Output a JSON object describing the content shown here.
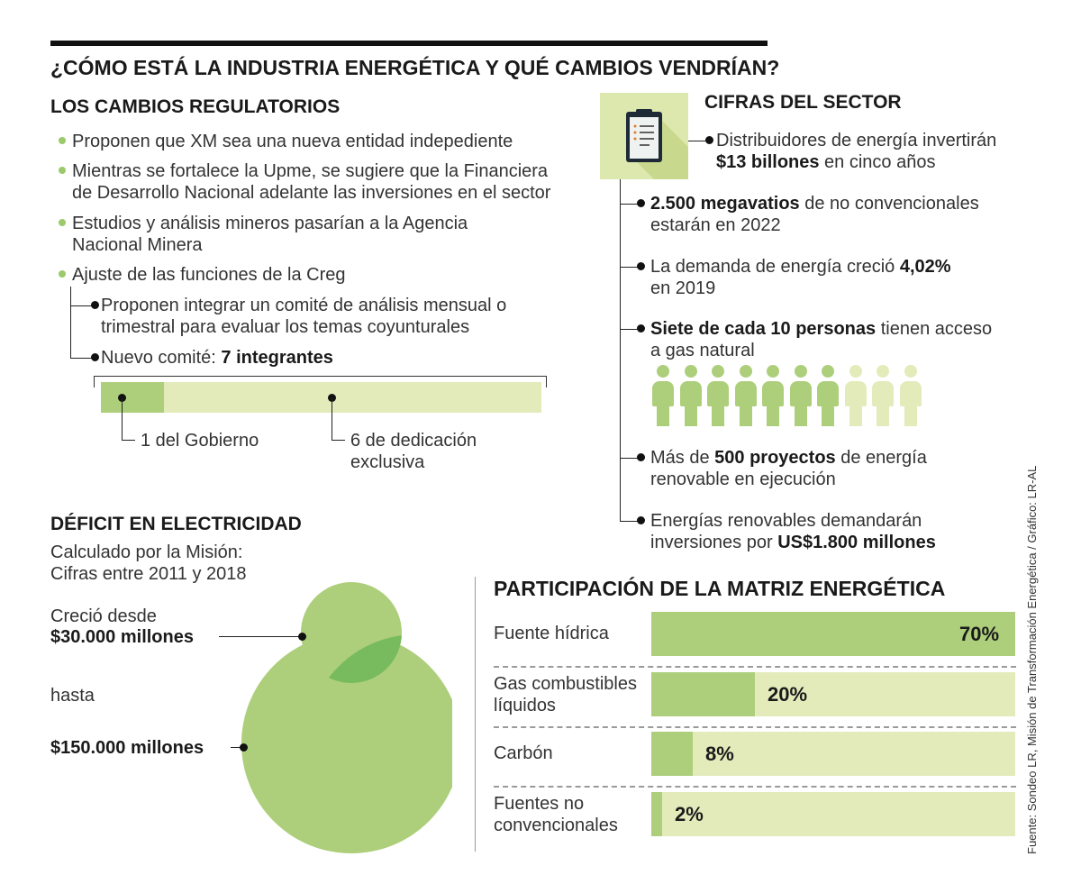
{
  "title": "¿CÓMO ESTÁ LA INDUSTRIA ENERGÉTICA Y QUÉ CAMBIOS VENDRÍAN?",
  "regulatory": {
    "heading": "LOS CAMBIOS REGULATORIOS",
    "items": [
      {
        "text": "Proponen que XM sea una nueva entidad indepediente"
      },
      {
        "line1": "Mientras se fortalece la Upme, se sugiere que la Financiera",
        "line2": "de Desarrollo Nacional adelante las inversiones en el sector"
      },
      {
        "line1": "Estudios y análisis mineros pasarían a la Agencia",
        "line2": "Nacional Minera"
      },
      {
        "text": "Ajuste de las funciones de la Creg"
      }
    ],
    "sub_items": [
      {
        "line1": "Proponen integrar un comité de análisis mensual o",
        "line2": "trimestral para evaluar los temas coyunturales"
      },
      {
        "prefix": "Nuevo comité: ",
        "bold": "7 integrantes"
      }
    ],
    "committee": {
      "government_share": 0.1428,
      "government_label": "1 del Gobierno",
      "exclusive_label_line1": "6 de dedicación",
      "exclusive_label_line2": "exclusiva"
    }
  },
  "sector": {
    "heading": "CIFRAS DEL SECTOR",
    "icon": "clipboard-icon",
    "items": [
      {
        "line1": "Distribuidores de energía invertirán",
        "line2_bold": "$13 billones",
        "line2_rest": " en cinco años"
      },
      {
        "line1_bold": "2.500 megavatios",
        "line1_rest": " de no convencionales",
        "line2": "estarán en 2022"
      },
      {
        "line1_pre": "La demanda de energía creció ",
        "line1_bold": "4,02%",
        "line2": "en 2019"
      },
      {
        "line1_bold": "Siete de cada 10 personas",
        "line1_rest": " tienen acceso",
        "line2": "a gas natural"
      },
      {
        "line1_pre": "Más de ",
        "line1_bold": "500 proyectos",
        "line1_rest": " de energía",
        "line2": "renovable en ejecución"
      },
      {
        "line1": "Energías renovables demandarán",
        "line2_pre": "inversiones por ",
        "line2_bold": "US$1.800 millones"
      }
    ],
    "people_with_access": 7,
    "people_total": 10
  },
  "deficit": {
    "heading": "DÉFICIT EN ELECTRICIDAD",
    "sub1": "Calculado por la Misión:",
    "sub2": "Cifras entre 2011 y 2018",
    "grew_from": "Creció desde",
    "from_value": "$30.000 millones",
    "until": "hasta",
    "to_value": "$150.000 millones"
  },
  "matrix": {
    "heading": "PARTICIPACIÓN DE LA MATRIZ ENERGÉTICA",
    "rows": [
      {
        "label1": "Fuente hídrica",
        "label2": "",
        "value": 70,
        "value_label": "70%"
      },
      {
        "label1": "Gas combustibles",
        "label2": "líquidos",
        "value": 20,
        "value_label": "20%"
      },
      {
        "label1": "Carbón",
        "label2": "",
        "value": 8,
        "value_label": "8%"
      },
      {
        "label1": "Fuentes no",
        "label2": "convencionales",
        "value": 2,
        "value_label": "2%"
      }
    ]
  },
  "source": "Fuente: Sondeo LR, Misión de Transformación Energética / Gráfico: LR-AL",
  "colors": {
    "green_light": "#e3ebbb",
    "green_mid": "#adcf7b",
    "green_dark": "#78bb5e",
    "bullet": "#9cc96b",
    "icon_bg": "#dce8ad"
  }
}
